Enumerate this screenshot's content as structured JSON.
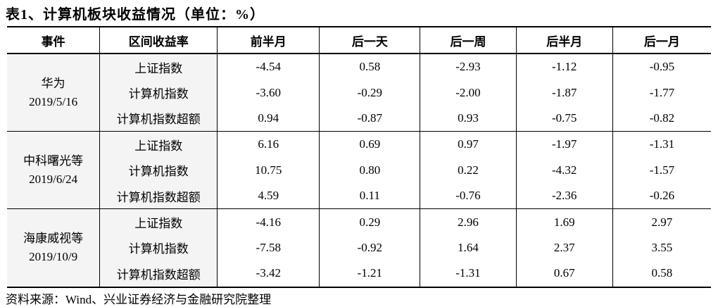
{
  "title": "表1、计算机板块收益情况（单位：%）",
  "table": {
    "header": [
      "事件",
      "区间收益率",
      "前半月",
      "后一天",
      "后一周",
      "后半月",
      "后一月"
    ],
    "groups": [
      {
        "event": "华为",
        "date": "2019/5/16",
        "rows": [
          {
            "label": "上证指数",
            "values": [
              "-4.54",
              "0.58",
              "-2.93",
              "-1.12",
              "-0.95"
            ]
          },
          {
            "label": "计算机指数",
            "values": [
              "-3.60",
              "-0.29",
              "-2.00",
              "-1.87",
              "-1.77"
            ]
          },
          {
            "label": "计算机指数超额",
            "values": [
              "0.94",
              "-0.87",
              "0.93",
              "-0.75",
              "-0.82"
            ]
          }
        ]
      },
      {
        "event": "中科曙光等",
        "date": "2019/6/24",
        "rows": [
          {
            "label": "上证指数",
            "values": [
              "6.16",
              "0.69",
              "0.97",
              "-1.97",
              "-1.31"
            ]
          },
          {
            "label": "计算机指数",
            "values": [
              "10.75",
              "0.80",
              "0.22",
              "-4.32",
              "-1.57"
            ]
          },
          {
            "label": "计算机指数超额",
            "values": [
              "4.59",
              "0.11",
              "-0.76",
              "-2.36",
              "-0.26"
            ]
          }
        ]
      },
      {
        "event": "海康威视等",
        "date": "2019/10/9",
        "rows": [
          {
            "label": "上证指数",
            "values": [
              "-4.16",
              "0.29",
              "2.96",
              "1.69",
              "2.97"
            ]
          },
          {
            "label": "计算机指数",
            "values": [
              "-7.58",
              "-0.92",
              "1.64",
              "2.37",
              "3.55"
            ]
          },
          {
            "label": "计算机指数超额",
            "values": [
              "-3.42",
              "-1.21",
              "-1.31",
              "0.67",
              "0.58"
            ]
          }
        ]
      }
    ]
  },
  "source": "资料来源：Wind、兴业证券经济与金融研究院整理"
}
